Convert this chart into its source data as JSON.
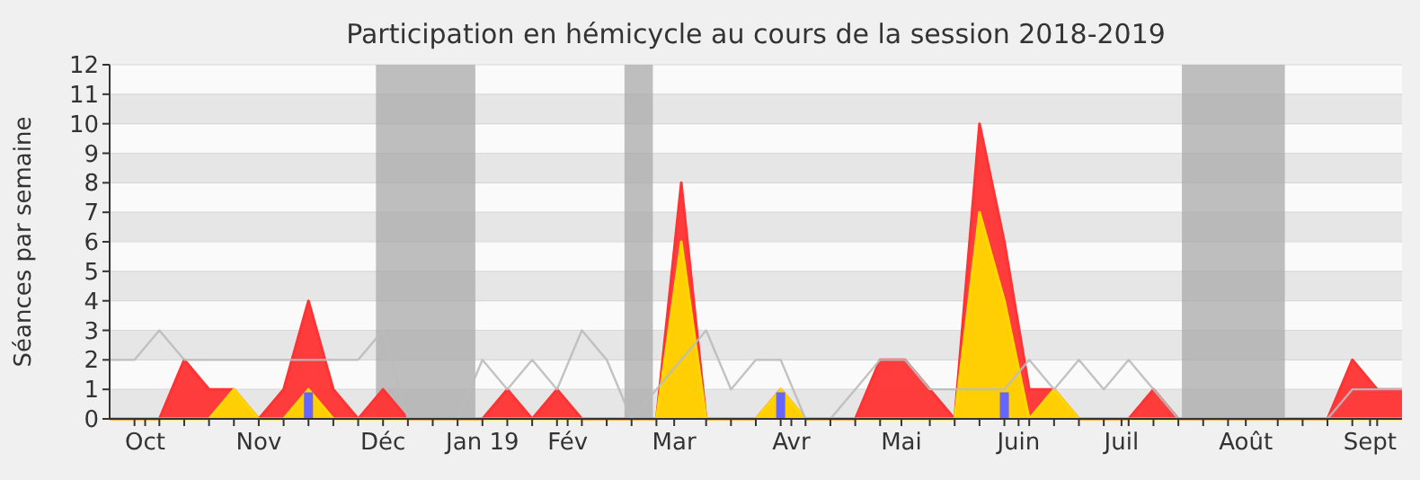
{
  "chart_data": {
    "type": "area",
    "title": "Participation en hémicycle au cours de la session 2018-2019",
    "ylabel": "Séances par semaine",
    "x": [
      "2018-09-24",
      "2018-10-01",
      "2018-10-08",
      "2018-10-15",
      "2018-10-22",
      "2018-10-29",
      "2018-11-05",
      "2018-11-12",
      "2018-11-19",
      "2018-11-26",
      "2018-12-03",
      "2018-12-10",
      "2018-12-17",
      "2018-12-24",
      "2018-12-31",
      "2019-01-07",
      "2019-01-14",
      "2019-01-21",
      "2019-01-28",
      "2019-02-04",
      "2019-02-11",
      "2019-02-18",
      "2019-02-25",
      "2019-03-04",
      "2019-03-11",
      "2019-03-18",
      "2019-03-25",
      "2019-04-01",
      "2019-04-08",
      "2019-04-15",
      "2019-04-22",
      "2019-04-29",
      "2019-05-06",
      "2019-05-13",
      "2019-05-20",
      "2019-05-27",
      "2019-06-03",
      "2019-06-10",
      "2019-06-17",
      "2019-06-24",
      "2019-07-01",
      "2019-07-08",
      "2019-07-15",
      "2019-07-22",
      "2019-07-29",
      "2019-08-05",
      "2019-08-12",
      "2019-08-19",
      "2019-08-26",
      "2019-09-02",
      "2019-09-09",
      "2019-09-16",
      "2019-09-23"
    ],
    "series": [
      {
        "color": "#ff3333",
        "values": [
          0,
          0,
          0,
          2,
          1,
          1,
          0,
          1,
          4,
          1,
          0,
          1,
          0,
          0,
          0,
          0,
          1,
          0,
          1,
          0,
          0,
          0,
          0,
          8,
          0,
          0,
          0,
          1,
          0,
          0,
          0,
          2,
          2,
          1,
          0,
          10,
          6,
          1,
          1,
          0,
          0,
          0,
          1,
          0,
          0,
          0,
          0,
          0,
          0,
          0,
          2,
          1,
          1
        ]
      },
      {
        "color": "#ffd700",
        "values": [
          0,
          0,
          0,
          0,
          0,
          1,
          0,
          0,
          1,
          0,
          0,
          0,
          0,
          0,
          0,
          0,
          0,
          0,
          0,
          0,
          0,
          0,
          0,
          6,
          0,
          0,
          0,
          1,
          0,
          0,
          0,
          0,
          0,
          0,
          0,
          7,
          4,
          0,
          1,
          0,
          0,
          0,
          0,
          0,
          0,
          0,
          0,
          0,
          0,
          0,
          0,
          0,
          0
        ]
      },
      {
        "type": "line",
        "color": "#bbbbbb",
        "values": [
          2,
          2,
          3,
          2,
          2,
          2,
          2,
          2,
          2,
          2,
          2,
          3,
          0,
          0,
          0,
          2,
          1,
          2,
          1,
          3,
          2,
          0,
          1,
          2,
          3,
          1,
          2,
          2,
          0,
          0,
          1,
          2,
          2,
          1,
          1,
          1,
          1,
          2,
          1,
          2,
          1,
          2,
          1,
          0,
          0,
          0,
          0,
          0,
          0,
          0,
          1,
          1,
          1
        ]
      },
      {
        "type": "bar",
        "color": "#6666ff",
        "values": [
          null,
          null,
          null,
          null,
          null,
          null,
          null,
          null,
          0.9,
          null,
          null,
          null,
          null,
          null,
          null,
          null,
          null,
          null,
          null,
          null,
          null,
          null,
          null,
          null,
          null,
          null,
          null,
          0.9,
          null,
          null,
          null,
          null,
          null,
          null,
          null,
          null,
          0.9,
          null,
          null,
          null,
          null,
          null,
          null,
          null,
          null,
          null,
          null,
          null,
          null,
          null,
          null,
          null,
          null
        ]
      }
    ],
    "bands": [
      {
        "axis": "x",
        "from": "2018-12-08",
        "to": "2019-01-05",
        "color": "#aaaaaa"
      },
      {
        "axis": "x",
        "from": "2019-02-16",
        "to": "2019-02-24",
        "color": "#aaaaaa"
      },
      {
        "axis": "x",
        "from": "2019-07-23",
        "to": "2019-08-21",
        "color": "#aaaaaa"
      }
    ],
    "xlim": [
      "2018-09-24",
      "2019-09-23"
    ],
    "xticks": [
      {
        "value": "2018-10-01",
        "label": null
      },
      {
        "value": "2018-10-04",
        "label": "Oct"
      },
      {
        "value": "2018-10-08",
        "label": null
      },
      {
        "value": "2018-10-15",
        "label": null
      },
      {
        "value": "2018-10-22",
        "label": null
      },
      {
        "value": "2018-10-29",
        "label": null
      },
      {
        "value": "2018-11-05",
        "label": "Nov"
      },
      {
        "value": "2018-11-12",
        "label": null
      },
      {
        "value": "2018-11-19",
        "label": null
      },
      {
        "value": "2018-11-26",
        "label": null
      },
      {
        "value": "2018-12-03",
        "label": null
      },
      {
        "value": "2018-12-10",
        "label": "Déc"
      },
      {
        "value": "2018-12-17",
        "label": null
      },
      {
        "value": "2018-12-24",
        "label": null
      },
      {
        "value": "2018-12-31",
        "label": null
      },
      {
        "value": "2019-01-07",
        "label": "Jan 19"
      },
      {
        "value": "2019-01-14",
        "label": null
      },
      {
        "value": "2019-01-21",
        "label": null
      },
      {
        "value": "2019-01-28",
        "label": null
      },
      {
        "value": "2019-01-31",
        "label": "Fév"
      },
      {
        "value": "2019-02-04",
        "label": null
      },
      {
        "value": "2019-02-11",
        "label": null
      },
      {
        "value": "2019-02-18",
        "label": null
      },
      {
        "value": "2019-02-25",
        "label": null
      },
      {
        "value": "2019-03-02",
        "label": "Mar"
      },
      {
        "value": "2019-03-11",
        "label": null
      },
      {
        "value": "2019-03-18",
        "label": null
      },
      {
        "value": "2019-03-25",
        "label": null
      },
      {
        "value": "2019-04-01",
        "label": null
      },
      {
        "value": "2019-04-04",
        "label": "Avr"
      },
      {
        "value": "2019-04-08",
        "label": null
      },
      {
        "value": "2019-04-15",
        "label": null
      },
      {
        "value": "2019-04-22",
        "label": null
      },
      {
        "value": "2019-04-29",
        "label": null
      },
      {
        "value": "2019-05-05",
        "label": "Mai"
      },
      {
        "value": "2019-05-13",
        "label": null
      },
      {
        "value": "2019-05-20",
        "label": null
      },
      {
        "value": "2019-05-27",
        "label": null
      },
      {
        "value": "2019-06-03",
        "label": null
      },
      {
        "value": "2019-06-07",
        "label": "Juin"
      },
      {
        "value": "2019-06-10",
        "label": null
      },
      {
        "value": "2019-06-17",
        "label": null
      },
      {
        "value": "2019-06-24",
        "label": null
      },
      {
        "value": "2019-07-01",
        "label": null
      },
      {
        "value": "2019-07-06",
        "label": "Juil"
      },
      {
        "value": "2019-07-08",
        "label": null
      },
      {
        "value": "2019-07-15",
        "label": null
      },
      {
        "value": "2019-07-22",
        "label": null
      },
      {
        "value": "2019-07-29",
        "label": null
      },
      {
        "value": "2019-08-05",
        "label": null
      },
      {
        "value": "2019-08-10",
        "label": "Août"
      },
      {
        "value": "2019-08-19",
        "label": null
      },
      {
        "value": "2019-08-26",
        "label": null
      },
      {
        "value": "2019-09-02",
        "label": null
      },
      {
        "value": "2019-09-09",
        "label": null
      },
      {
        "value": "2019-09-14",
        "label": "Sept"
      },
      {
        "value": "2019-09-16",
        "label": null
      }
    ],
    "ylim": [
      0,
      12
    ],
    "yticks": [
      0,
      1,
      2,
      3,
      4,
      5,
      6,
      7,
      8,
      9,
      10,
      11,
      12
    ],
    "grid": "y"
  }
}
